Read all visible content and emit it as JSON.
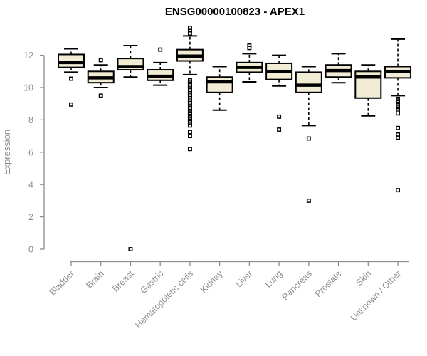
{
  "chart_data": {
    "type": "boxplot",
    "title": "ENSG00000100823 - APEX1",
    "xlabel": "",
    "ylabel": "Expression",
    "ylim": [
      0,
      13.9
    ],
    "yticks": [
      0,
      2,
      4,
      6,
      8,
      10,
      12
    ],
    "grid": false,
    "legend": false,
    "x_label_rotation": 45,
    "categories": [
      "Bladder",
      "Brain",
      "Breast",
      "Gastric",
      "Hematopoietic cells",
      "Kidney",
      "Liver",
      "Lung",
      "Pancreas",
      "Prostate",
      "Skin",
      "Unknown / Other"
    ],
    "boxes": [
      {
        "category": "Bladder",
        "whisker_low": 10.95,
        "q1": 11.25,
        "median": 11.55,
        "q3": 12.05,
        "whisker_high": 12.4,
        "outliers": [
          10.55,
          8.95
        ]
      },
      {
        "category": "Brain",
        "whisker_low": 10.0,
        "q1": 10.3,
        "median": 10.6,
        "q3": 11.0,
        "whisker_high": 11.4,
        "outliers": [
          11.7,
          9.5
        ]
      },
      {
        "category": "Breast",
        "whisker_low": 10.65,
        "q1": 11.1,
        "median": 11.3,
        "q3": 11.8,
        "whisker_high": 12.6,
        "outliers": [
          0.0
        ]
      },
      {
        "category": "Gastric",
        "whisker_low": 10.15,
        "q1": 10.45,
        "median": 10.7,
        "q3": 11.1,
        "whisker_high": 11.55,
        "outliers": [
          12.35
        ]
      },
      {
        "category": "Hematopoietic cells",
        "whisker_low": 10.8,
        "q1": 11.65,
        "median": 11.95,
        "q3": 12.35,
        "whisker_high": 13.2,
        "outliers": [
          13.7,
          13.5,
          13.35,
          10.45,
          10.35,
          10.25,
          10.15,
          10.05,
          9.95,
          9.85,
          9.75,
          9.65,
          9.55,
          9.45,
          9.35,
          9.25,
          9.15,
          9.05,
          8.95,
          8.85,
          8.75,
          8.65,
          8.55,
          8.45,
          8.35,
          8.25,
          8.15,
          8.05,
          7.95,
          7.85,
          7.75,
          7.65,
          7.25,
          7.0,
          6.2
        ]
      },
      {
        "category": "Kidney",
        "whisker_low": 8.6,
        "q1": 9.7,
        "median": 10.35,
        "q3": 10.65,
        "whisker_high": 11.3,
        "outliers": []
      },
      {
        "category": "Liver",
        "whisker_low": 10.35,
        "q1": 10.95,
        "median": 11.25,
        "q3": 11.55,
        "whisker_high": 12.1,
        "outliers": [
          12.6,
          12.45
        ]
      },
      {
        "category": "Lung",
        "whisker_low": 10.1,
        "q1": 10.5,
        "median": 11.0,
        "q3": 11.5,
        "whisker_high": 12.0,
        "outliers": [
          8.2,
          7.4
        ]
      },
      {
        "category": "Pancreas",
        "whisker_low": 7.65,
        "q1": 9.7,
        "median": 10.15,
        "q3": 10.95,
        "whisker_high": 11.3,
        "outliers": [
          6.85,
          3.0
        ]
      },
      {
        "category": "Prostate",
        "whisker_low": 10.3,
        "q1": 10.65,
        "median": 11.05,
        "q3": 11.4,
        "whisker_high": 12.1,
        "outliers": []
      },
      {
        "category": "Skin",
        "whisker_low": 8.25,
        "q1": 9.35,
        "median": 10.65,
        "q3": 11.0,
        "whisker_high": 11.4,
        "outliers": []
      },
      {
        "category": "Unknown / Other",
        "whisker_low": 9.5,
        "q1": 10.6,
        "median": 11.0,
        "q3": 11.3,
        "whisker_high": 13.0,
        "outliers": [
          9.3,
          9.2,
          9.1,
          9.0,
          8.9,
          8.8,
          8.7,
          8.6,
          8.5,
          8.4,
          7.5,
          7.1,
          6.9,
          3.65
        ]
      }
    ],
    "colors": {
      "box_fill": "#F2ECD5",
      "box_stroke": "#000000",
      "median": "#000000",
      "whisker": "#000000",
      "outlier_stroke": "#000000",
      "axis": "#8d8d8d",
      "tick_label": "#8d8d8d",
      "title": "#000000"
    }
  }
}
